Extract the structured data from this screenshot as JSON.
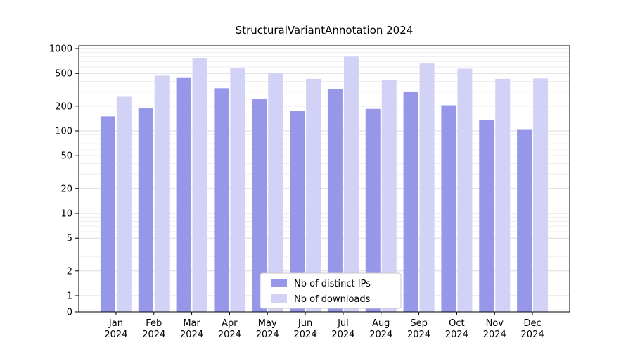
{
  "title": "StructuralVariantAnnotation 2024",
  "chart_data": {
    "type": "bar",
    "scale": "symlog",
    "title": "StructuralVariantAnnotation 2024",
    "xlabel": "",
    "ylabel": "",
    "year": "2024",
    "categories": [
      "Jan",
      "Feb",
      "Mar",
      "Apr",
      "May",
      "Jun",
      "Jul",
      "Aug",
      "Sep",
      "Oct",
      "Nov",
      "Dec"
    ],
    "series": [
      {
        "name": "Nb of distinct IPs",
        "color": "#9797ea",
        "values": [
          150,
          190,
          440,
          330,
          245,
          175,
          320,
          185,
          300,
          205,
          135,
          105
        ]
      },
      {
        "name": "Nb of downloads",
        "color": "#d2d2f6",
        "values": [
          260,
          470,
          770,
          580,
          500,
          430,
          800,
          420,
          660,
          570,
          430,
          435
        ]
      }
    ],
    "yticks": [
      0,
      1,
      2,
      5,
      10,
      20,
      50,
      100,
      200,
      500,
      1000
    ],
    "ytick_labels": [
      "0",
      "1",
      "2",
      "5",
      "10",
      "20",
      "50",
      "100",
      "200",
      "500",
      "1000"
    ],
    "ylim": [
      0,
      1000
    ],
    "grid": true,
    "legend_position": "bottom-center",
    "legend_labels": [
      "Nb of distinct IPs",
      "Nb of downloads"
    ],
    "colors": {
      "background": "#ffffff",
      "major_grid": "#dcdcdc",
      "minor_grid": "#eeeeee",
      "axis": "#000000",
      "legend_border": "#c8c8c8"
    }
  }
}
